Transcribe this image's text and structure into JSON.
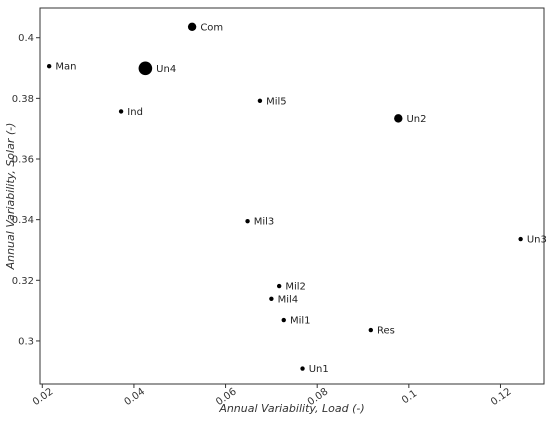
{
  "chart_data": {
    "type": "scatter",
    "xlabel": "Annual Variability, Load (-)",
    "ylabel": "Annual Variability, Solar (-)",
    "xlim": [
      0.0195,
      0.1295
    ],
    "ylim": [
      0.2858,
      0.4098
    ],
    "x_ticks": [
      0.02,
      0.04,
      0.06,
      0.08,
      0.1,
      0.12
    ],
    "x_tick_labels": [
      "0.02",
      "0.04",
      "0.06",
      "0.08",
      "0.1",
      "0.12"
    ],
    "y_ticks": [
      0.3,
      0.32,
      0.34,
      0.36,
      0.38,
      0.4
    ],
    "y_tick_labels": [
      "0.3",
      "0.32",
      "0.34",
      "0.36",
      "0.38",
      "0.4"
    ],
    "grid": false,
    "points": [
      {
        "label": "Com",
        "x": 0.0527,
        "y": 0.4036,
        "size": "medium"
      },
      {
        "label": "Man",
        "x": 0.0215,
        "y": 0.3906,
        "size": "small"
      },
      {
        "label": "Un4",
        "x": 0.0425,
        "y": 0.3899,
        "size": "large"
      },
      {
        "label": "Mil5",
        "x": 0.0675,
        "y": 0.3792,
        "size": "small"
      },
      {
        "label": "Ind",
        "x": 0.0372,
        "y": 0.3757,
        "size": "small"
      },
      {
        "label": "Un2",
        "x": 0.0977,
        "y": 0.3734,
        "size": "medium"
      },
      {
        "label": "Mil3",
        "x": 0.0648,
        "y": 0.3395,
        "size": "small"
      },
      {
        "label": "Un3",
        "x": 0.1244,
        "y": 0.3336,
        "size": "small"
      },
      {
        "label": "Mil2",
        "x": 0.0717,
        "y": 0.3181,
        "size": "small"
      },
      {
        "label": "Mil4",
        "x": 0.07,
        "y": 0.3139,
        "size": "small"
      },
      {
        "label": "Mil1",
        "x": 0.0727,
        "y": 0.3069,
        "size": "small"
      },
      {
        "label": "Res",
        "x": 0.0917,
        "y": 0.3036,
        "size": "small"
      },
      {
        "label": "Un1",
        "x": 0.0768,
        "y": 0.2909,
        "size": "small"
      }
    ]
  }
}
